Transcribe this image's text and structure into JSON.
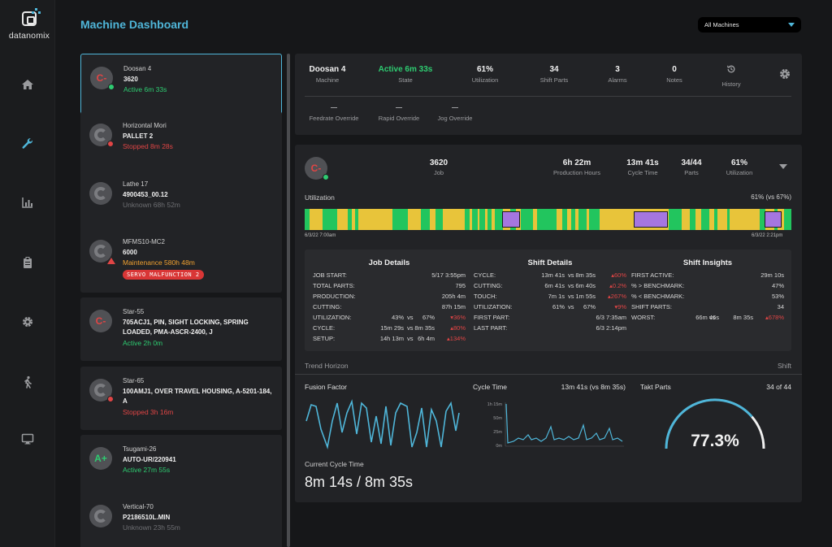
{
  "app": {
    "logo_text": "datanomix",
    "page_title": "Machine Dashboard"
  },
  "nav": [
    "home-icon",
    "wrench-icon",
    "bar-chart-icon",
    "clipboard-icon",
    "gear-icon",
    "walking-person-icon",
    "monitor-icon"
  ],
  "machine_filter": {
    "selected": "All Machines"
  },
  "machines": [
    {
      "name": "Doosan 4",
      "job": "3620",
      "status": "Active 6m 33s",
      "status_color": "green",
      "grade": "C-"
    },
    {
      "name": "Horizontal Mori",
      "job": "PALLET 2",
      "status": "Stopped 8m 28s",
      "status_color": "red"
    },
    {
      "name": "Lathe 17",
      "job": "4900453_00.12",
      "status": "Unknown 68h 52m",
      "status_color": "gray"
    },
    {
      "name": "MFMS10-MC2",
      "job": "6000",
      "status": "Maintenance 580h 48m",
      "status_color": "orange",
      "alarm": "SERVO MALFUNCTION 2"
    },
    {
      "name": "Star-55",
      "job": "705ACJ1, PIN, SIGHT LOCKING, SPRING LOADED, PMA-ASCR-2400, J",
      "status": "Active 2h 0m",
      "status_color": "green",
      "grade": "C-"
    },
    {
      "name": "Star-65",
      "job": "100AMJ1, OVER TRAVEL HOUSING, A-5201-184, A",
      "status": "Stopped 3h 16m",
      "status_color": "red"
    },
    {
      "name": "Tsugami-26",
      "job": "AUTO-UR/220941",
      "status": "Active 27m 55s",
      "status_color": "green",
      "grade": "A+"
    },
    {
      "name": "Vertical-70",
      "job": "P2186510L.MIN",
      "status": "Unknown 23h 55m",
      "status_color": "gray"
    }
  ],
  "summary": {
    "machine": {
      "value": "Doosan 4",
      "label": "Machine"
    },
    "state": {
      "value": "Active 6m 33s",
      "label": "State"
    },
    "utilization": {
      "value": "61%",
      "label": "Utilization"
    },
    "shift_parts": {
      "value": "34",
      "label": "Shift Parts"
    },
    "alarms": {
      "value": "3",
      "label": "Alarms"
    },
    "notes": {
      "value": "0",
      "label": "Notes"
    },
    "history_label": "History",
    "overrides": {
      "feedrate": "Feedrate Override",
      "rapid": "Rapid Override",
      "jog": "Jog Override",
      "placeholder": "—"
    }
  },
  "job_kpis": {
    "grade": "C-",
    "job": {
      "value": "3620",
      "label": "Job"
    },
    "production_hours": {
      "value": "6h 22m",
      "label": "Production Hours"
    },
    "cycle_time": {
      "value": "13m 41s",
      "label": "Cycle Time"
    },
    "parts": {
      "value": "34/44",
      "label": "Parts"
    },
    "utilization": {
      "value": "61%",
      "label": "Utilization"
    }
  },
  "utilization_bar": {
    "label": "Utilization",
    "value": "61% (vs 67%)",
    "start": "6/3/22 7:00am",
    "end": "6/3/22 2:21pm"
  },
  "job_details": {
    "title": "Job Details",
    "rows": [
      {
        "label": "JOB START:",
        "value": "5/17 3:55pm"
      },
      {
        "label": "TOTAL PARTS:",
        "value": "795"
      },
      {
        "label": "PRODUCTION:",
        "value": "205h 4m"
      },
      {
        "label": "CUTTING:",
        "value": "87h 15m"
      },
      {
        "label": "UTILIZATION:",
        "a": "43%",
        "vs": "vs",
        "b": "67%",
        "delta": "▾36%"
      },
      {
        "label": "CYCLE:",
        "a": "15m 29s",
        "vs": "vs",
        "b": "8m 35s",
        "delta": "▴80%"
      },
      {
        "label": "SETUP:",
        "a": "14h 13m",
        "vs": "vs",
        "b": "6h 4m",
        "delta": "▴134%"
      }
    ]
  },
  "shift_details": {
    "title": "Shift Details",
    "rows": [
      {
        "label": "CYCLE:",
        "a": "13m 41s",
        "vs": "vs",
        "b": "8m 35s",
        "delta": "▴60%"
      },
      {
        "label": "CUTTING:",
        "a": "6m 41s",
        "vs": "vs",
        "b": "6m 40s",
        "delta": "▴0.2%"
      },
      {
        "label": "TOUCH:",
        "a": "7m 1s",
        "vs": "vs",
        "b": "1m 55s",
        "delta": "▴267%"
      },
      {
        "label": "UTILIZATION:",
        "a": "61%",
        "vs": "vs",
        "b": "67%",
        "delta": "▾9%"
      },
      {
        "label": "FIRST PART:",
        "value": "6/3 7:35am"
      },
      {
        "label": "LAST PART:",
        "value": "6/3 2:14pm"
      }
    ]
  },
  "shift_insights": {
    "title": "Shift Insights",
    "rows": [
      {
        "label": "FIRST ACTIVE:",
        "value": "29m 10s"
      },
      {
        "label": "% > BENCHMARK:",
        "value": "47%"
      },
      {
        "label": "% < BENCHMARK:",
        "value": "53%"
      },
      {
        "label": "SHIFT PARTS:",
        "value": "34"
      },
      {
        "label": "WORST:",
        "a": "66m 46s",
        "vs": "vs",
        "b": "8m 35s",
        "delta": "▴678%"
      }
    ]
  },
  "trend": {
    "label": "Trend Horizon",
    "horizon": "Shift"
  },
  "fusion_factor": {
    "title": "Fusion Factor"
  },
  "cycle_time_chart": {
    "title": "Cycle Time",
    "value": "13m 41s (vs 8m 35s)",
    "ticks": [
      "1h 15m",
      "50m",
      "25m",
      "0m"
    ]
  },
  "takt": {
    "title": "Takt Parts",
    "value": "34 of 44",
    "gauge": "77.3%",
    "fraction": 0.773
  },
  "current_cycle": {
    "label": "Current Cycle Time",
    "value": "8m 14s / 8m 35s"
  },
  "colors": {
    "accent": "#4fb6d9",
    "active": "#2ecc71",
    "stopped": "#e04545",
    "maintenance": "#f0a030",
    "idle_bar": "#e8c43a",
    "setup_box": "#a576e0"
  }
}
